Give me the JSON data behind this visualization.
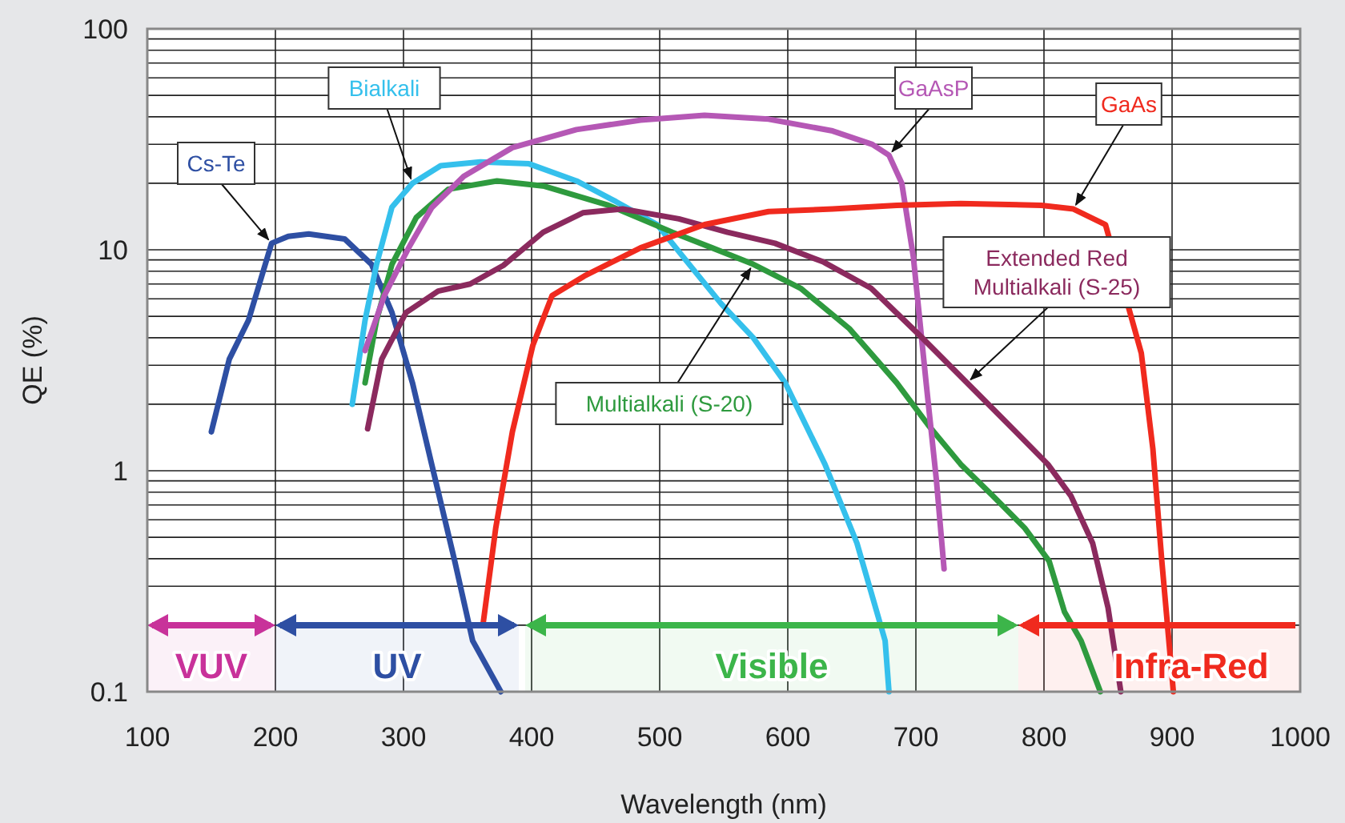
{
  "chart_data": {
    "type": "line",
    "xlabel": "Wavelength (nm)",
    "ylabel": "QE (%)",
    "log": "y",
    "grid": true,
    "marker": "none",
    "line_style": "solid",
    "xlim": [
      100,
      1000
    ],
    "xticks": [
      100,
      200,
      300,
      400,
      500,
      600,
      700,
      800,
      900,
      1000
    ],
    "ylim": [
      0.1,
      100
    ],
    "yticks": [
      0.1,
      1,
      10,
      100
    ],
    "series": [
      {
        "name": "Cs-Te",
        "color": "#2e4fa3",
        "x": [
          150,
          164,
          179,
          197,
          210,
          226,
          254,
          275,
          291,
          307,
          322,
          340,
          354,
          376
        ],
        "values": [
          1.5,
          3.2,
          4.8,
          10.7,
          11.5,
          11.8,
          11.2,
          8.6,
          5.2,
          2.5,
          1.07,
          0.39,
          0.17,
          0.1
        ]
      },
      {
        "name": "Bialkali",
        "color": "#35c0ec",
        "x": [
          260,
          270,
          279,
          291,
          307,
          329,
          360,
          398,
          435,
          466,
          498,
          523,
          548,
          573,
          598,
          629,
          654,
          676,
          679
        ],
        "values": [
          2.0,
          4.8,
          8.6,
          15.6,
          20,
          24,
          25,
          24.5,
          20.5,
          16.5,
          13,
          8.6,
          5.7,
          4.0,
          2.5,
          1.07,
          0.47,
          0.17,
          0.1
        ]
      },
      {
        "name": "Multialkali (S-20)",
        "color": "#2e9a3e",
        "x": [
          270,
          279,
          291,
          310,
          335,
          373,
          410,
          460,
          510,
          541,
          573,
          610,
          648,
          685,
          710,
          735,
          760,
          785,
          804,
          816,
          829,
          844
        ],
        "values": [
          2.5,
          4.8,
          8.6,
          14,
          18.8,
          20.5,
          19.4,
          15.9,
          12,
          10.2,
          8.6,
          6.7,
          4.4,
          2.5,
          1.6,
          1.07,
          0.77,
          0.55,
          0.39,
          0.23,
          0.17,
          0.1
        ]
      },
      {
        "name": "GaAsP",
        "color": "#b558b5",
        "x": [
          270,
          285,
          304,
          322,
          347,
          385,
          435,
          485,
          535,
          585,
          635,
          666,
          679,
          689,
          698,
          708,
          716,
          722
        ],
        "values": [
          3.5,
          6.2,
          10.2,
          15.5,
          21.5,
          29,
          35,
          38.6,
          40.6,
          39,
          34.5,
          30,
          26.8,
          20,
          9.3,
          2.5,
          0.91,
          0.36
        ]
      },
      {
        "name": "Extended Red Multialkali (S-25)",
        "color": "#8b2a5e",
        "x": [
          272,
          283,
          302,
          327,
          352,
          378,
          409,
          440,
          471,
          515,
          553,
          590,
          628,
          665,
          703,
          740,
          778,
          803,
          821,
          838,
          850,
          860
        ],
        "values": [
          1.55,
          3.2,
          5.2,
          6.5,
          7.0,
          8.5,
          12,
          14.7,
          15.3,
          13.8,
          12,
          10.7,
          8.8,
          6.7,
          4.1,
          2.5,
          1.5,
          1.07,
          0.77,
          0.47,
          0.24,
          0.1
        ]
      },
      {
        "name": "GaAs",
        "color": "#f02a1e",
        "x": [
          362,
          372,
          385,
          401,
          416,
          441,
          485,
          535,
          585,
          635,
          685,
          735,
          798,
          823,
          848,
          876,
          885,
          892,
          901
        ],
        "values": [
          0.2,
          0.55,
          1.5,
          3.7,
          6.2,
          7.6,
          10.2,
          13,
          14.9,
          15.3,
          15.9,
          16.2,
          15.9,
          15.3,
          13,
          3.4,
          1.26,
          0.39,
          0.1
        ]
      }
    ],
    "bands": [
      {
        "axis": "x",
        "from": 100,
        "to": 200,
        "label": "VUV",
        "color": "#c8329a"
      },
      {
        "axis": "x",
        "from": 200,
        "to": 390,
        "label": "UV",
        "color": "#2e4fa3"
      },
      {
        "axis": "x",
        "from": 395,
        "to": 780,
        "label": "Visible",
        "color": "#3cb54a"
      },
      {
        "axis": "x",
        "from": 780,
        "to": 1000,
        "label": "Infra-Red",
        "color": "#f02a1e"
      }
    ]
  }
}
